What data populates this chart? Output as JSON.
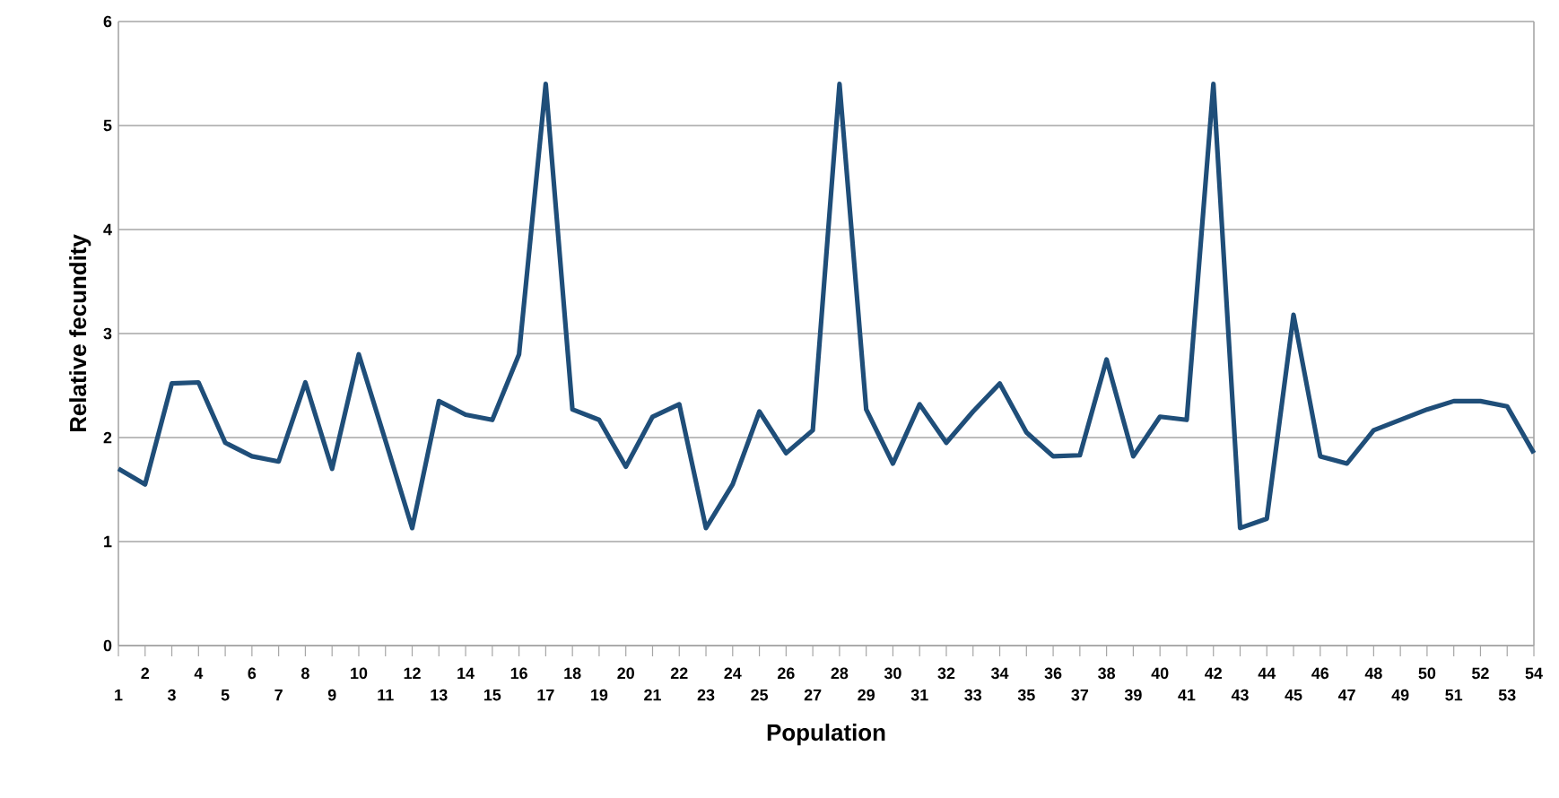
{
  "chart_data": {
    "type": "line",
    "xlabel": "Population",
    "ylabel": "Relative fecundity",
    "categories": [
      "1",
      "2",
      "3",
      "4",
      "5",
      "6",
      "7",
      "8",
      "9",
      "10",
      "11",
      "12",
      "13",
      "14",
      "15",
      "16",
      "17",
      "18",
      "19",
      "20",
      "21",
      "22",
      "23",
      "24",
      "25",
      "26",
      "27",
      "28",
      "29",
      "30",
      "31",
      "32",
      "33",
      "34",
      "35",
      "36",
      "37",
      "38",
      "39",
      "40",
      "41",
      "42",
      "43",
      "44",
      "45",
      "46",
      "47",
      "48",
      "49",
      "50",
      "51",
      "52",
      "53",
      "54"
    ],
    "series": [
      {
        "color": "#1f4e79",
        "values": [
          1.7,
          1.55,
          2.52,
          2.53,
          1.95,
          1.82,
          1.77,
          2.53,
          1.7,
          2.8,
          1.97,
          1.13,
          2.35,
          2.22,
          2.17,
          2.8,
          5.4,
          2.27,
          2.17,
          1.72,
          2.2,
          2.32,
          1.13,
          1.55,
          2.25,
          1.85,
          2.07,
          5.4,
          2.27,
          1.75,
          2.32,
          1.95,
          2.25,
          2.52,
          2.05,
          1.82,
          1.83,
          2.75,
          1.82,
          2.2,
          2.17,
          5.4,
          1.13,
          1.22,
          3.18,
          1.82,
          1.75,
          2.07,
          2.17,
          2.27,
          2.35,
          2.35,
          2.3,
          1.85
        ]
      }
    ],
    "ylim": [
      0,
      6
    ],
    "yticks": [
      0,
      1,
      2,
      3,
      4,
      5,
      6
    ],
    "grid": "y",
    "marker": "none",
    "line_style": "solid"
  }
}
